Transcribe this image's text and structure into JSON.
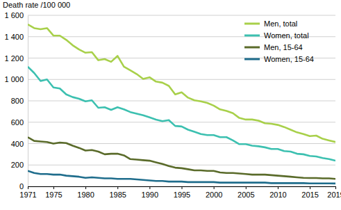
{
  "chart_data": {
    "type": "line",
    "ylabel": "Death rate /100 000",
    "x": [
      1971,
      1972,
      1973,
      1974,
      1975,
      1976,
      1977,
      1978,
      1979,
      1980,
      1981,
      1982,
      1983,
      1984,
      1985,
      1986,
      1987,
      1988,
      1989,
      1990,
      1991,
      1992,
      1993,
      1994,
      1995,
      1996,
      1997,
      1998,
      1999,
      2000,
      2001,
      2002,
      2003,
      2004,
      2005,
      2006,
      2007,
      2008,
      2009,
      2010,
      2011,
      2012,
      2013,
      2014,
      2015,
      2016,
      2017,
      2018,
      2019
    ],
    "series": [
      {
        "name": "Men, total",
        "color": "#a8d04a",
        "values": [
          1515,
          1480,
          1470,
          1480,
          1410,
          1410,
          1370,
          1320,
          1280,
          1250,
          1255,
          1180,
          1190,
          1165,
          1220,
          1120,
          1085,
          1050,
          1005,
          1020,
          980,
          970,
          940,
          860,
          880,
          830,
          805,
          795,
          780,
          755,
          720,
          705,
          685,
          640,
          625,
          625,
          615,
          590,
          585,
          575,
          555,
          530,
          505,
          490,
          470,
          475,
          445,
          430,
          415
        ]
      },
      {
        "name": "Women, total",
        "color": "#3cc0b0",
        "values": [
          1120,
          1060,
          985,
          1000,
          925,
          915,
          860,
          835,
          820,
          795,
          805,
          735,
          740,
          715,
          740,
          720,
          695,
          680,
          665,
          645,
          625,
          610,
          620,
          565,
          560,
          530,
          510,
          490,
          480,
          480,
          460,
          460,
          430,
          395,
          395,
          380,
          375,
          365,
          350,
          350,
          330,
          325,
          305,
          300,
          285,
          280,
          265,
          255,
          240
        ]
      },
      {
        "name": "Men, 15-64",
        "color": "#5a6b2a",
        "values": [
          460,
          425,
          420,
          415,
          400,
          410,
          405,
          380,
          360,
          335,
          340,
          325,
          300,
          305,
          305,
          290,
          255,
          250,
          245,
          240,
          225,
          210,
          190,
          175,
          170,
          160,
          150,
          150,
          145,
          145,
          130,
          125,
          125,
          120,
          115,
          110,
          110,
          110,
          105,
          100,
          95,
          90,
          85,
          80,
          78,
          78,
          75,
          75,
          70
        ]
      },
      {
        "name": "Women, 15-64",
        "color": "#1f6d8c",
        "values": [
          145,
          125,
          115,
          115,
          110,
          110,
          100,
          95,
          90,
          80,
          85,
          80,
          75,
          75,
          70,
          70,
          70,
          65,
          60,
          55,
          50,
          50,
          45,
          45,
          45,
          40,
          40,
          40,
          40,
          40,
          35,
          35,
          35,
          35,
          35,
          35,
          35,
          35,
          30,
          30,
          30,
          30,
          30,
          30,
          28,
          28,
          28,
          28,
          27
        ]
      }
    ],
    "xlim": [
      1971,
      2019
    ],
    "xticks": [
      1971,
      1975,
      1980,
      1985,
      1990,
      1995,
      2000,
      2005,
      2010,
      2015,
      2019
    ],
    "ylim": [
      0,
      1600
    ],
    "yticks": [
      0,
      200,
      400,
      600,
      800,
      {
        "value": 1000,
        "label": "1 000"
      },
      {
        "value": 1200,
        "label": "1 200"
      },
      {
        "value": 1400,
        "label": "1 400"
      },
      {
        "value": 1600,
        "label": "1 600"
      }
    ],
    "grid": true,
    "legend": "upper right"
  }
}
